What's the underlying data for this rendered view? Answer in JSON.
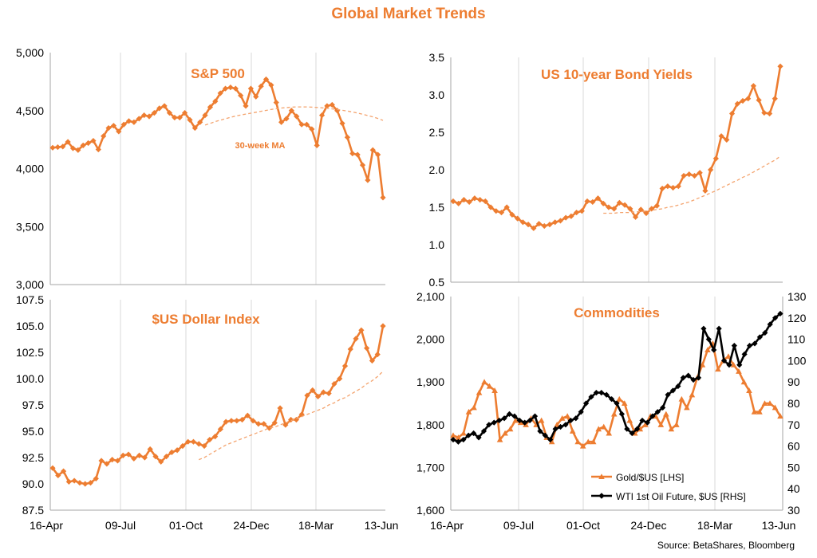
{
  "page": {
    "title": "Global Market Trends",
    "source": "Source: BetaShares, Bloomberg"
  },
  "colors": {
    "accent": "#ED7D31",
    "ma_line": "#F4A46F",
    "oil": "#000000",
    "grid": "#D9D9D9"
  },
  "chart_data": [
    {
      "id": "sp500",
      "type": "line",
      "title": "S&P 500",
      "ylim": [
        3000,
        5000
      ],
      "yticks": [
        3000,
        3500,
        4000,
        4500,
        5000
      ],
      "ytick_labels": [
        "3,000",
        "3,500",
        "4,000",
        "4,500",
        "5,000"
      ],
      "grid_x": true,
      "annotation": "30-week MA",
      "series": [
        {
          "style": "diamond",
          "values": [
            4180,
            4185,
            4190,
            4230,
            4175,
            4160,
            4200,
            4220,
            4240,
            4165,
            4280,
            4350,
            4370,
            4320,
            4380,
            4410,
            4400,
            4430,
            4460,
            4450,
            4480,
            4520,
            4540,
            4480,
            4440,
            4440,
            4480,
            4420,
            4350,
            4400,
            4460,
            4530,
            4580,
            4650,
            4690,
            4700,
            4690,
            4630,
            4540,
            4690,
            4620,
            4710,
            4770,
            4720,
            4570,
            4400,
            4430,
            4500,
            4450,
            4380,
            4380,
            4340,
            4200,
            4460,
            4540,
            4550,
            4500,
            4390,
            4270,
            4130,
            4120,
            4030,
            3900,
            4160,
            4120,
            3750
          ]
        },
        {
          "style": "dash",
          "values": [
            null,
            null,
            null,
            null,
            null,
            null,
            null,
            null,
            null,
            null,
            null,
            null,
            null,
            null,
            null,
            null,
            null,
            null,
            null,
            null,
            null,
            null,
            null,
            null,
            null,
            null,
            null,
            null,
            null,
            null,
            4375,
            4390,
            4405,
            4418,
            4430,
            4442,
            4453,
            4462,
            4470,
            4478,
            4486,
            4494,
            4502,
            4510,
            4516,
            4522,
            4526,
            4530,
            4532,
            4532,
            4532,
            4530,
            4527,
            4524,
            4520,
            4515,
            4510,
            4503,
            4496,
            4488,
            4479,
            4469,
            4458,
            4446,
            4432,
            4416
          ]
        }
      ]
    },
    {
      "id": "dollar",
      "type": "line",
      "title": "$US Dollar Index",
      "ylim": [
        87.5,
        107.5
      ],
      "yticks": [
        87.5,
        90,
        92.5,
        95,
        97.5,
        100,
        102.5,
        105,
        107.5
      ],
      "ytick_labels": [
        "87.5",
        "90.0",
        "92.5",
        "95.0",
        "97.5",
        "100.0",
        "102.5",
        "105.0",
        "107.5"
      ],
      "grid_x": true,
      "x_ticks": [
        "16-Apr",
        "09-Jul",
        "01-Oct",
        "24-Dec",
        "18-Mar",
        "13-Jun"
      ],
      "series": [
        {
          "style": "diamond",
          "values": [
            91.5,
            90.8,
            91.2,
            90.2,
            90.3,
            90.1,
            90.0,
            90.1,
            90.5,
            92.2,
            91.9,
            92.3,
            92.2,
            92.7,
            92.8,
            92.4,
            92.7,
            92.5,
            93.3,
            92.6,
            92.1,
            92.6,
            93.0,
            93.2,
            93.6,
            94.0,
            94.0,
            93.8,
            93.6,
            94.2,
            94.5,
            95.2,
            95.9,
            96.0,
            96.0,
            96.1,
            96.5,
            96.0,
            95.7,
            95.7,
            95.3,
            95.8,
            97.2,
            95.6,
            96.1,
            96.1,
            96.6,
            98.4,
            98.9,
            98.3,
            98.7,
            98.6,
            99.5,
            100.0,
            101.2,
            102.8,
            103.8,
            104.6,
            102.9,
            101.7,
            102.3,
            105.0
          ]
        },
        {
          "style": "dash",
          "values": [
            null,
            null,
            null,
            null,
            null,
            null,
            null,
            null,
            null,
            null,
            null,
            null,
            null,
            null,
            null,
            null,
            null,
            null,
            null,
            null,
            null,
            null,
            null,
            null,
            null,
            null,
            null,
            92.3,
            92.5,
            92.8,
            93.1,
            93.4,
            93.7,
            93.9,
            94.1,
            94.3,
            94.5,
            94.7,
            94.9,
            95.1,
            95.3,
            95.4,
            95.6,
            95.8,
            96.0,
            96.2,
            96.4,
            96.6,
            96.8,
            97.0,
            97.2,
            97.5,
            97.7,
            98.0,
            98.2,
            98.5,
            98.8,
            99.1,
            99.5,
            99.8,
            100.2,
            100.7
          ]
        }
      ]
    },
    {
      "id": "bond",
      "type": "line",
      "title": "US 10-year Bond Yields",
      "ylim": [
        0.5,
        3.5
      ],
      "yticks": [
        0.5,
        1.0,
        1.5,
        2.0,
        2.5,
        3.0,
        3.5
      ],
      "ytick_labels": [
        "0.5",
        "1.0",
        "1.5",
        "2.0",
        "2.5",
        "3.0",
        "3.5"
      ],
      "grid_x": true,
      "series": [
        {
          "style": "diamond",
          "values": [
            1.58,
            1.55,
            1.6,
            1.57,
            1.62,
            1.6,
            1.58,
            1.5,
            1.45,
            1.43,
            1.5,
            1.4,
            1.35,
            1.3,
            1.27,
            1.22,
            1.28,
            1.25,
            1.27,
            1.3,
            1.32,
            1.36,
            1.38,
            1.43,
            1.45,
            1.58,
            1.57,
            1.62,
            1.55,
            1.5,
            1.48,
            1.56,
            1.53,
            1.48,
            1.37,
            1.47,
            1.42,
            1.48,
            1.52,
            1.75,
            1.78,
            1.76,
            1.78,
            1.92,
            1.94,
            1.92,
            1.96,
            1.72,
            2.0,
            2.15,
            2.45,
            2.4,
            2.75,
            2.88,
            2.92,
            2.95,
            3.12,
            2.93,
            2.76,
            2.75,
            2.95,
            3.38
          ]
        },
        {
          "style": "dash",
          "values": [
            null,
            null,
            null,
            null,
            null,
            null,
            null,
            null,
            null,
            null,
            null,
            null,
            null,
            null,
            null,
            null,
            null,
            null,
            null,
            null,
            null,
            null,
            null,
            null,
            null,
            null,
            null,
            null,
            1.42,
            1.42,
            1.42,
            1.43,
            1.43,
            1.43,
            1.44,
            1.44,
            1.45,
            1.46,
            1.47,
            1.48,
            1.5,
            1.51,
            1.53,
            1.55,
            1.57,
            1.6,
            1.63,
            1.66,
            1.69,
            1.72,
            1.76,
            1.79,
            1.83,
            1.86,
            1.9,
            1.93,
            1.97,
            2.01,
            2.05,
            2.09,
            2.13,
            2.18
          ]
        }
      ]
    },
    {
      "id": "commodities",
      "type": "line",
      "title": "Commodities",
      "ylim": [
        1600,
        2100
      ],
      "yticks": [
        1600,
        1700,
        1800,
        1900,
        2000,
        2100
      ],
      "ytick_labels": [
        "1,600",
        "1,700",
        "1,800",
        "1,900",
        "2,000",
        "2,100"
      ],
      "ylim_right": [
        30,
        130
      ],
      "yticks_right": [
        30,
        40,
        50,
        60,
        70,
        80,
        90,
        100,
        110,
        120,
        130
      ],
      "grid_x": true,
      "x_ticks": [
        "16-Apr",
        "09-Jul",
        "01-Oct",
        "24-Dec",
        "18-Mar",
        "13-Jun"
      ],
      "legend_position": "bottom-right",
      "series": [
        {
          "name": "Gold/$US [LHS]",
          "axis": "left",
          "style": "triangle",
          "values": [
            1775,
            1770,
            1780,
            1830,
            1840,
            1875,
            1900,
            1890,
            1880,
            1765,
            1780,
            1790,
            1810,
            1805,
            1800,
            1815,
            1800,
            1810,
            1770,
            1760,
            1800,
            1815,
            1820,
            1785,
            1760,
            1750,
            1760,
            1760,
            1790,
            1795,
            1780,
            1825,
            1860,
            1850,
            1810,
            1780,
            1790,
            1800,
            1820,
            1820,
            1800,
            1825,
            1790,
            1800,
            1860,
            1840,
            1870,
            1910,
            1940,
            1975,
            1990,
            1930,
            1950,
            1960,
            1940,
            1925,
            1900,
            1880,
            1830,
            1830,
            1850,
            1850,
            1840,
            1820
          ]
        },
        {
          "name": "WTI 1st Oil Future, $US [RHS]",
          "axis": "right",
          "style": "diamond",
          "values": [
            63,
            62,
            63,
            65,
            66,
            64,
            67,
            70,
            71,
            72,
            73,
            75,
            74,
            72,
            71,
            72,
            74,
            67,
            65,
            63,
            68,
            69,
            70,
            72,
            73,
            76,
            80,
            83,
            85,
            85,
            84,
            82,
            80,
            75,
            68,
            66,
            68,
            72,
            71,
            74,
            76,
            78,
            84,
            86,
            88,
            92,
            93,
            91,
            92,
            115,
            110,
            105,
            115,
            100,
            98,
            107,
            98,
            103,
            107,
            108,
            111,
            113,
            117,
            120,
            122
          ]
        }
      ]
    }
  ]
}
